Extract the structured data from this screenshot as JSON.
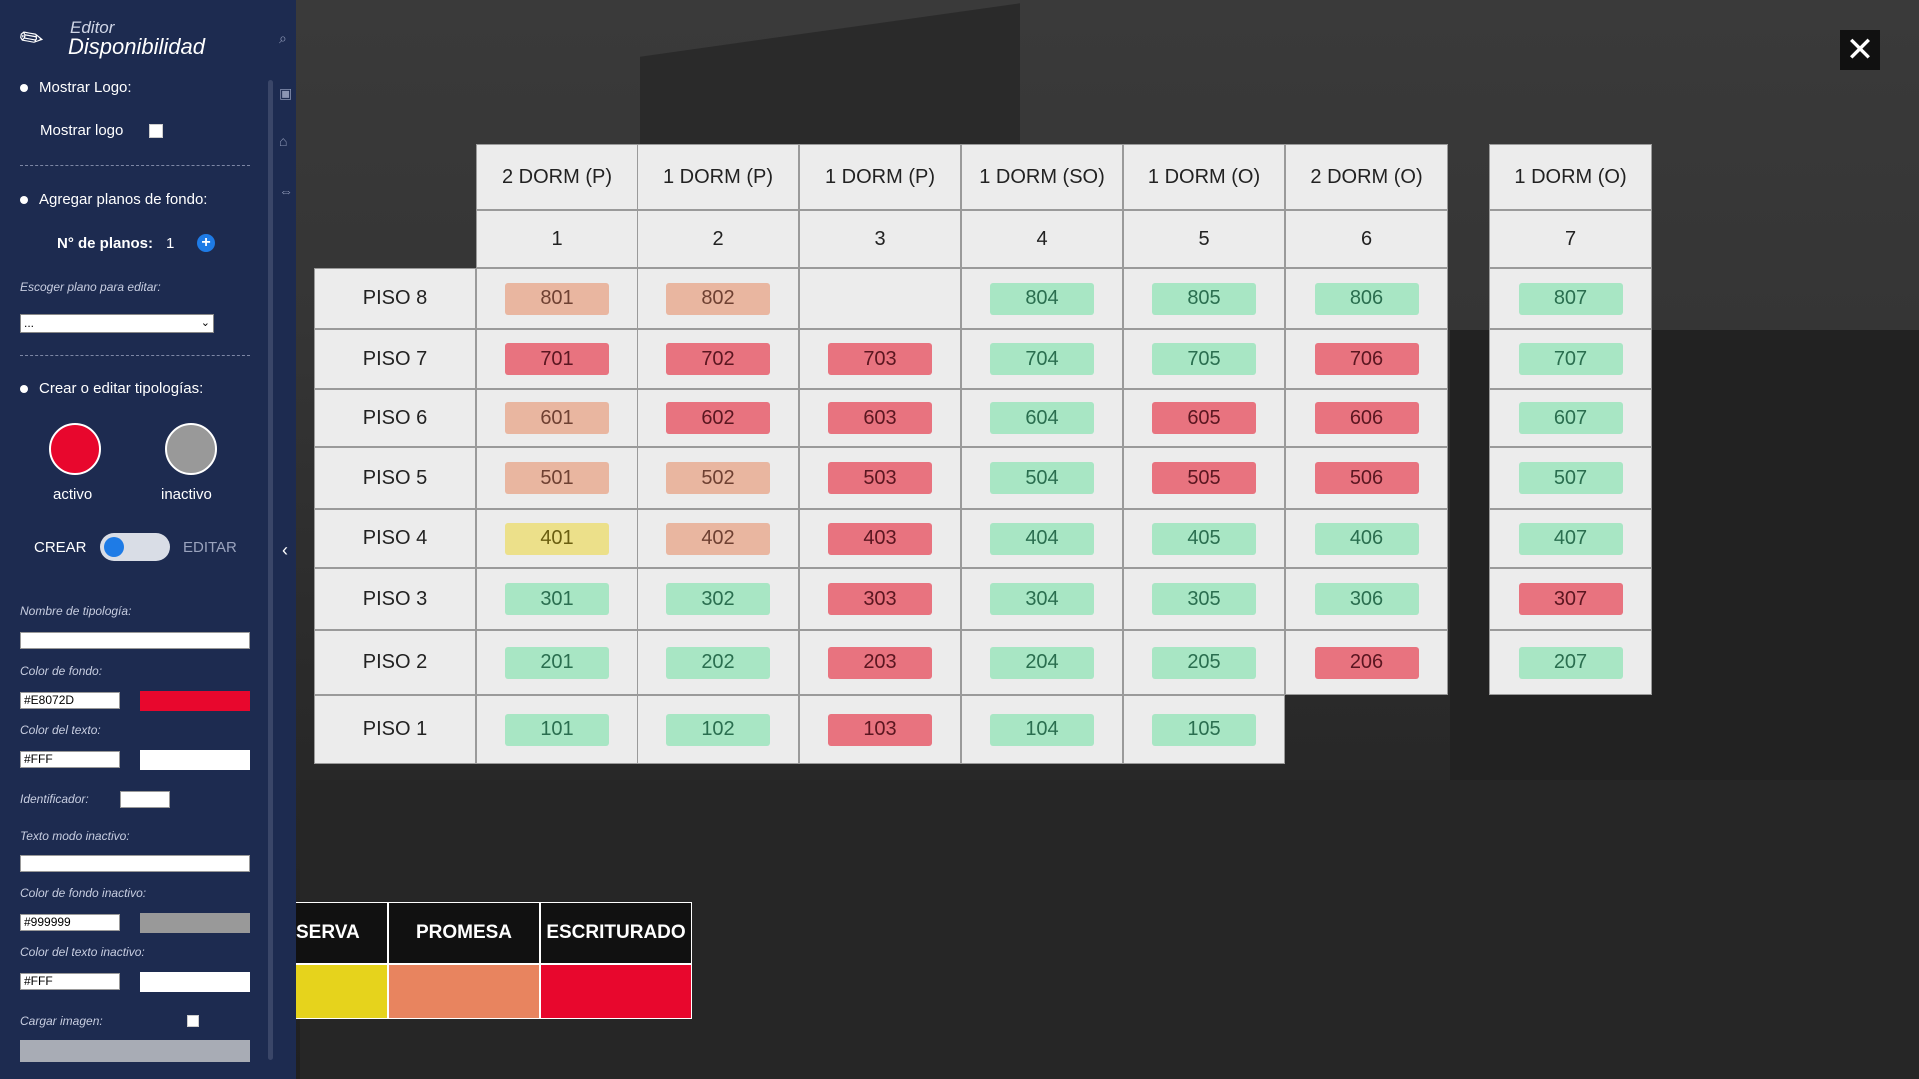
{
  "sidebar": {
    "brand_top": "Editor",
    "brand_main": "Disponibilidad",
    "show_logo_section": "Mostrar Logo:",
    "show_logo_label": "Mostrar logo",
    "add_plans_section": "Agregar planos de fondo:",
    "num_plans_label": "N° de planos:",
    "num_plans_value": "1",
    "choose_plan_label": "Escoger plano para editar:",
    "choose_plan_value": "...",
    "typologies_section": "Crear o editar tipologías:",
    "active_label": "activo",
    "inactive_label": "inactivo",
    "create_label": "CREAR",
    "edit_label": "EDITAR",
    "typology_name_label": "Nombre de tipología:",
    "bg_color_label": "Color de fondo:",
    "bg_color_value": "#E8072D",
    "text_color_label": "Color del texto:",
    "text_color_value": "#FFF",
    "identifier_label": "Identificador:",
    "inactive_text_label": "Texto modo inactivo:",
    "inactive_bg_label": "Color de fondo inactivo:",
    "inactive_bg_value": "#999999",
    "inactive_text_color_label": "Color del texto inactivo:",
    "inactive_text_color_value": "#FFF",
    "load_image_label": "Cargar imagen:"
  },
  "colors": {
    "active": "#e8072d",
    "inactive": "#999999",
    "accent": "#1e7be6",
    "sidebar": "#1d2b50"
  },
  "grid": {
    "types": [
      "2 DORM (P)",
      "1 DORM (P)",
      "1 DORM (P)",
      "1 DORM (SO)",
      "1 DORM (O)",
      "2 DORM (O)",
      "1 DORM (O)"
    ],
    "columns": [
      "1",
      "2",
      "3",
      "4",
      "5",
      "6",
      "7"
    ],
    "floors": [
      "PISO 8",
      "PISO 7",
      "PISO 6",
      "PISO 5",
      "PISO 4",
      "PISO 3",
      "PISO 2",
      "PISO 1"
    ],
    "units": [
      [
        [
          "801",
          "salmon"
        ],
        [
          "802",
          "salmon"
        ],
        null,
        [
          "804",
          "green"
        ],
        [
          "805",
          "green"
        ],
        [
          "806",
          "green"
        ],
        [
          "807",
          "green"
        ]
      ],
      [
        [
          "701",
          "red"
        ],
        [
          "702",
          "red"
        ],
        [
          "703",
          "red"
        ],
        [
          "704",
          "green"
        ],
        [
          "705",
          "green"
        ],
        [
          "706",
          "red"
        ],
        [
          "707",
          "green"
        ]
      ],
      [
        [
          "601",
          "salmon"
        ],
        [
          "602",
          "red"
        ],
        [
          "603",
          "red"
        ],
        [
          "604",
          "green"
        ],
        [
          "605",
          "red"
        ],
        [
          "606",
          "red"
        ],
        [
          "607",
          "green"
        ]
      ],
      [
        [
          "501",
          "salmon"
        ],
        [
          "502",
          "salmon"
        ],
        [
          "503",
          "red"
        ],
        [
          "504",
          "green"
        ],
        [
          "505",
          "red"
        ],
        [
          "506",
          "red"
        ],
        [
          "507",
          "green"
        ]
      ],
      [
        [
          "401",
          "yellow"
        ],
        [
          "402",
          "salmon"
        ],
        [
          "403",
          "red"
        ],
        [
          "404",
          "green"
        ],
        [
          "405",
          "green"
        ],
        [
          "406",
          "green"
        ],
        [
          "407",
          "green"
        ]
      ],
      [
        [
          "301",
          "green"
        ],
        [
          "302",
          "green"
        ],
        [
          "303",
          "red"
        ],
        [
          "304",
          "green"
        ],
        [
          "305",
          "green"
        ],
        [
          "306",
          "green"
        ],
        [
          "307",
          "red"
        ]
      ],
      [
        [
          "201",
          "green"
        ],
        [
          "202",
          "green"
        ],
        [
          "203",
          "red"
        ],
        [
          "204",
          "green"
        ],
        [
          "205",
          "green"
        ],
        [
          "206",
          "red"
        ],
        [
          "207",
          "green"
        ]
      ],
      [
        [
          "101",
          "green"
        ],
        [
          "102",
          "green"
        ],
        [
          "103",
          "red"
        ],
        [
          "104",
          "green"
        ],
        [
          "105",
          "green"
        ],
        null,
        null
      ]
    ]
  },
  "legend": [
    {
      "label": "SERVA",
      "color": "#e6d31c"
    },
    {
      "label": "PROMESA",
      "color": "#e8845f"
    },
    {
      "label": "ESCRITURADO",
      "color": "#e8072d"
    }
  ]
}
